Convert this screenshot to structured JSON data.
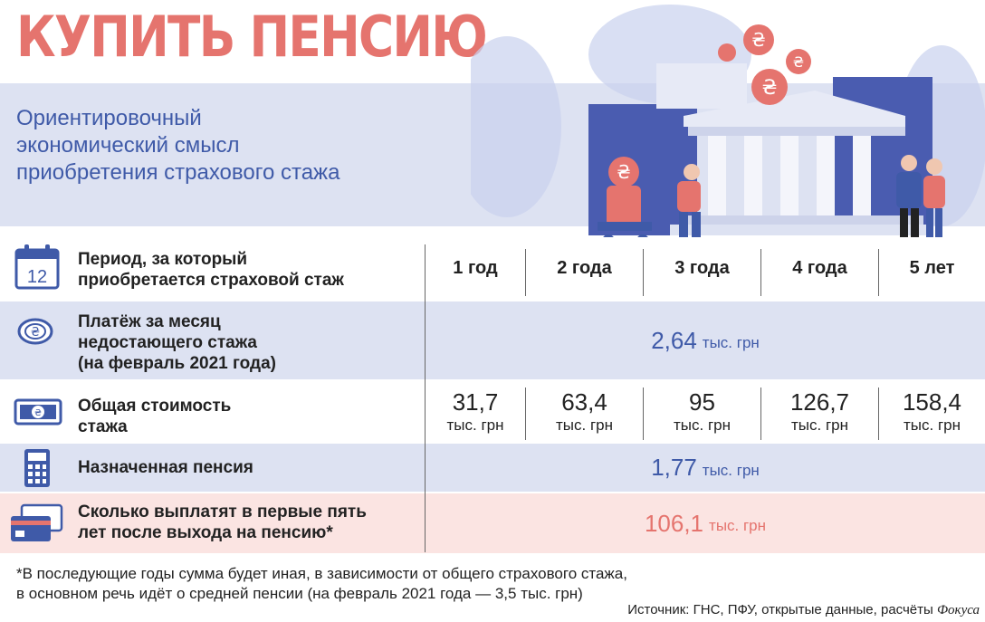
{
  "title": "КУПИТЬ ПЕНСИЮ",
  "subtitle": [
    "Ориентировочный",
    "экономический смысл",
    "приобретения страхового стажа"
  ],
  "calendar_day": "12",
  "coin_symbol": "₴",
  "colors": {
    "accent_red": "#e5746e",
    "accent_blue": "#3f5aa8",
    "band_blue": "#dde2f2",
    "band_pink": "#fbe4e2"
  },
  "table": {
    "period_label": [
      "Период, за который",
      "приобретается страховой стаж"
    ],
    "periods": [
      "1 год",
      "2 года",
      "3 года",
      "4 года",
      "5 лет"
    ],
    "monthly_label": [
      "Платёж за месяц",
      "недостающего стажа",
      "(на февраль 2021 года)"
    ],
    "monthly_value": "2,64",
    "monthly_unit": "тыс. грн",
    "total_label": [
      "Общая стоимость",
      "стажа"
    ],
    "totals": [
      "31,7",
      "63,4",
      "95",
      "126,7",
      "158,4"
    ],
    "totals_unit": "тыс. грн",
    "pension_label": "Назначенная пенсия",
    "pension_value": "1,77",
    "pension_unit": "тыс. грн",
    "payout_label": [
      "Сколько выплатят в первые пять",
      "лет после выхода на пенсию*"
    ],
    "payout_value": "106,1",
    "payout_unit": "тыс. грн"
  },
  "footnote": [
    "*В последующие годы сумма будет иная, в зависимости от общего страхового стажа,",
    "в основном речь идёт о средней пенсии (на февраль 2021 года — 3,5 тыс. грн)"
  ],
  "source_prefix": "Источник: ГНС, ПФУ, открытые данные, расчёты",
  "source_brand": "Фокуса",
  "icons": [
    "calendar-icon",
    "coin-icon",
    "banknote-icon",
    "calculator-icon",
    "bank-card-icon"
  ]
}
